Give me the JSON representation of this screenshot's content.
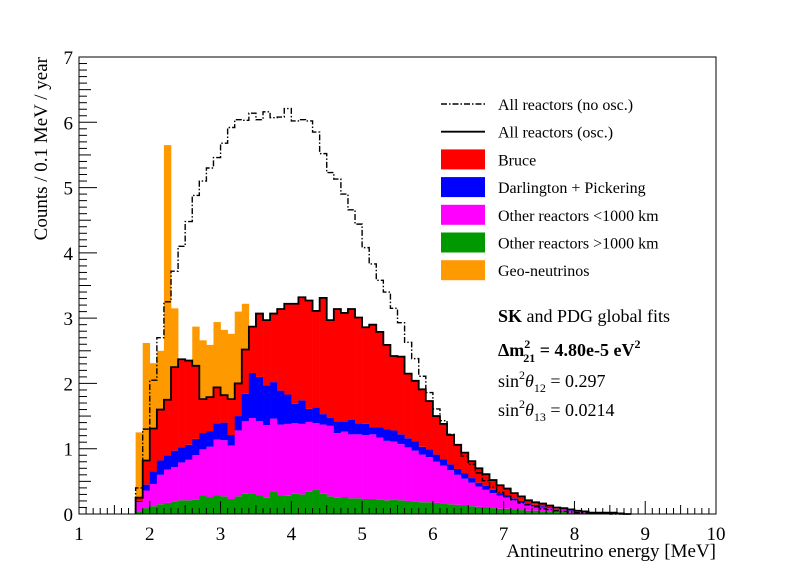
{
  "chart_data": {
    "type": "histogram",
    "xlabel": "Antineutrino energy [MeV]",
    "ylabel": "Counts / 0.1 MeV / year",
    "xlim": [
      1,
      10
    ],
    "ylim": [
      0,
      7
    ],
    "x_ticks": [
      "1",
      "2",
      "3",
      "4",
      "5",
      "6",
      "7",
      "8",
      "9",
      "10"
    ],
    "y_ticks": [
      "0",
      "1",
      "2",
      "3",
      "4",
      "5",
      "6",
      "7"
    ],
    "bin_width": 0.1,
    "x_start": 1.8,
    "stacking_order_bottom_to_top": [
      "Other reactors >1000 km",
      "Other reactors <1000 km",
      "Darlington + Pickering",
      "Bruce",
      "Geo-neutrinos"
    ],
    "series": [
      {
        "name": "Other reactors >1000 km",
        "color": "#009900",
        "values": [
          0.04,
          0.09,
          0.12,
          0.15,
          0.17,
          0.19,
          0.21,
          0.21,
          0.22,
          0.29,
          0.26,
          0.29,
          0.27,
          0.23,
          0.27,
          0.31,
          0.32,
          0.29,
          0.25,
          0.35,
          0.29,
          0.28,
          0.31,
          0.3,
          0.34,
          0.38,
          0.31,
          0.27,
          0.25,
          0.26,
          0.24,
          0.24,
          0.23,
          0.23,
          0.22,
          0.21,
          0.22,
          0.21,
          0.2,
          0.19,
          0.18,
          0.18,
          0.17,
          0.16,
          0.15,
          0.14,
          0.13,
          0.12,
          0.11,
          0.1,
          0.09,
          0.08,
          0.08,
          0.07,
          0.06,
          0.05,
          0.05,
          0.04,
          0.04,
          0.03,
          0.03,
          0.02,
          0.02,
          0.02,
          0.01,
          0.01,
          0.01,
          0.01,
          0.01,
          0
        ]
      },
      {
        "name": "Other reactors <1000 km",
        "color": "#ff00ff",
        "values": [
          0.14,
          0.27,
          0.34,
          0.45,
          0.51,
          0.53,
          0.58,
          0.62,
          0.68,
          0.7,
          0.77,
          0.85,
          0.86,
          0.82,
          1.01,
          1.11,
          1.15,
          1.13,
          1.11,
          1.11,
          1.08,
          1.1,
          1.08,
          1.08,
          1.07,
          1.01,
          1.06,
          1.08,
          0.99,
          1.0,
          0.98,
          0.98,
          0.98,
          0.99,
          0.95,
          0.91,
          0.89,
          0.86,
          0.82,
          0.78,
          0.73,
          0.69,
          0.63,
          0.58,
          0.52,
          0.46,
          0.41,
          0.36,
          0.31,
          0.27,
          0.23,
          0.2,
          0.17,
          0.14,
          0.11,
          0.09,
          0.07,
          0.06,
          0.05,
          0.04,
          0.04,
          0.03,
          0.02,
          0.02,
          0.01,
          0.01,
          0.01,
          0.01,
          0,
          0
        ]
      },
      {
        "name": "Darlington + Pickering",
        "color": "#0000ff",
        "values": [
          0.02,
          0.09,
          0.19,
          0.22,
          0.22,
          0.25,
          0.23,
          0.23,
          0.25,
          0.25,
          0.24,
          0.25,
          0.27,
          0.16,
          0.22,
          0.42,
          0.69,
          0.68,
          0.61,
          0.56,
          0.52,
          0.45,
          0.3,
          0.36,
          0.2,
          0.24,
          0.16,
          0.12,
          0.18,
          0.16,
          0.22,
          0.17,
          0.17,
          0.11,
          0.16,
          0.18,
          0.17,
          0.15,
          0.14,
          0.14,
          0.12,
          0.12,
          0.11,
          0.1,
          0.09,
          0.09,
          0.08,
          0.07,
          0.06,
          0.06,
          0.05,
          0.04,
          0.04,
          0.03,
          0.03,
          0.02,
          0.02,
          0.02,
          0.01,
          0.01,
          0.01,
          0.01,
          0,
          0,
          0,
          0,
          0,
          0,
          0,
          0
        ]
      },
      {
        "name": "Bruce",
        "color": "#ff0000",
        "values": [
          0.05,
          0.37,
          0.66,
          0.78,
          0.85,
          1.28,
          1.35,
          1.29,
          1.12,
          0.52,
          0.52,
          0.55,
          0.42,
          0.55,
          0.5,
          0.68,
          0.71,
          0.97,
          1.0,
          1.05,
          1.25,
          1.39,
          1.53,
          1.58,
          1.66,
          1.48,
          1.78,
          1.5,
          1.72,
          1.66,
          1.7,
          1.62,
          1.48,
          1.57,
          1.46,
          1.29,
          1.14,
          1.19,
          0.99,
          0.93,
          0.88,
          0.74,
          0.59,
          0.54,
          0.45,
          0.37,
          0.32,
          0.26,
          0.22,
          0.18,
          0.15,
          0.12,
          0.1,
          0.08,
          0.07,
          0.05,
          0.04,
          0.04,
          0.03,
          0.02,
          0.01,
          0.01,
          0.01,
          0,
          0,
          0,
          0,
          0,
          0,
          0
        ]
      },
      {
        "name": "Geo-neutrinos",
        "color": "#ff9900",
        "values": [
          1.0,
          1.8,
          1.0,
          0.9,
          3.9,
          0.9,
          0,
          0,
          0.6,
          0.9,
          0.8,
          1.0,
          1.0,
          1.0,
          1.1,
          0.7,
          0,
          0,
          0,
          0,
          0,
          0,
          0,
          0,
          0,
          0,
          0,
          0,
          0,
          0,
          0,
          0,
          0,
          0,
          0,
          0,
          0,
          0,
          0,
          0,
          0,
          0,
          0,
          0,
          0,
          0,
          0,
          0,
          0,
          0,
          0,
          0,
          0,
          0,
          0,
          0,
          0,
          0,
          0,
          0,
          0,
          0,
          0,
          0,
          0,
          0,
          0,
          0,
          0,
          0
        ]
      },
      {
        "name": "All reactors (no osc.)",
        "color": "#000000",
        "style": "dash-dot",
        "values": [
          0.4,
          1.3,
          2.05,
          2.7,
          3.25,
          3.72,
          4.1,
          4.48,
          4.88,
          5.1,
          5.3,
          5.46,
          5.68,
          5.92,
          6.04,
          6.03,
          6.14,
          6.04,
          6.16,
          6.07,
          6.08,
          6.21,
          6.02,
          6.04,
          6.02,
          5.85,
          5.52,
          5.23,
          5.13,
          4.9,
          4.66,
          4.44,
          4.08,
          3.83,
          3.58,
          3.4,
          3.15,
          2.93,
          2.63,
          2.38,
          2.11,
          1.86,
          1.61,
          1.43,
          1.22,
          1.06,
          0.89,
          0.76,
          0.63,
          0.51,
          0.41,
          0.33,
          0.27,
          0.22,
          0.17,
          0.14,
          0.11,
          0.08,
          0.07,
          0.05,
          0.04,
          0.03,
          0.02,
          0.02,
          0.01,
          0.01,
          0.01,
          0,
          0,
          0
        ]
      }
    ],
    "total_osc_line": {
      "name": "All reactors (osc.)",
      "color": "#000000",
      "style": "solid"
    },
    "legend_position": "top-right"
  },
  "legend": [
    {
      "label": "All reactors (no osc.)",
      "kind": "dashdot"
    },
    {
      "label": "All reactors (osc.)",
      "kind": "line"
    },
    {
      "label": "Bruce",
      "kind": "fill",
      "color": "#ff0000"
    },
    {
      "label": "Darlington + Pickering",
      "kind": "fill",
      "color": "#0000ff"
    },
    {
      "label": "Other reactors <1000 km",
      "kind": "fill",
      "color": "#ff00ff"
    },
    {
      "label": "Other reactors >1000 km",
      "kind": "fill",
      "color": "#009900"
    },
    {
      "label": "Geo-neutrinos",
      "kind": "fill",
      "color": "#ff9900"
    }
  ],
  "annotations": {
    "line1_bold": "SK",
    "line1_rest": " and PDG global fits",
    "dm_prefix": "Δm",
    "dm_sup": "2",
    "dm_sub": "21",
    "dm_value": " = 4.80e-5 eV",
    "dm_unit_sup": "2",
    "s12_prefix": "sin",
    "s12_sup": "2",
    "s12_theta": "θ",
    "s12_sub": "12",
    "s12_value": " = 0.297",
    "s13_prefix": "sin",
    "s13_sup": "2",
    "s13_theta": "θ",
    "s13_sub": "13",
    "s13_value": " = 0.0214"
  }
}
